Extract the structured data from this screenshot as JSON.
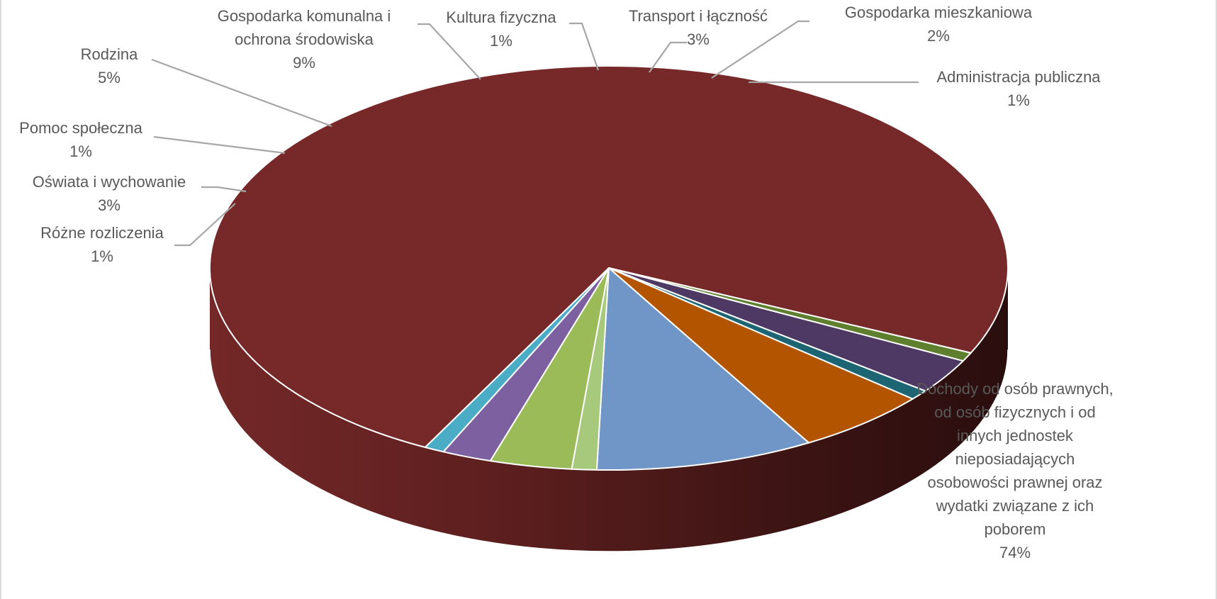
{
  "chart_data": {
    "type": "pie",
    "title": "",
    "style": "3d",
    "slices": [
      {
        "label": "Dochody od osób prawnych, od osób fizycznych i od innych jednostek nieposiadających osobowości prawnej oraz wydatki związane z ich poborem",
        "lines": [
          "Dochody od osób prawnych,",
          "od osób fizycznych i od",
          "innych jednostek",
          "nieposiadających",
          "osobowości prawnej oraz",
          "wydatki związane z ich",
          "poborem"
        ],
        "pct_label": "74%",
        "value": 74.0,
        "color": "#772828"
      },
      {
        "label": "Różne rozliczenia",
        "lines": [
          "Różne rozliczenia"
        ],
        "pct_label": "1%",
        "value": 0.7,
        "color": "#5e7f2e"
      },
      {
        "label": "Oświata i wychowanie",
        "lines": [
          "Oświata i wychowanie"
        ],
        "pct_label": "3%",
        "value": 2.8,
        "color": "#4e3964"
      },
      {
        "label": "Pomoc społeczna",
        "lines": [
          "Pomoc społeczna"
        ],
        "pct_label": "1%",
        "value": 0.8,
        "color": "#1e6574"
      },
      {
        "label": "Rodzina",
        "lines": [
          "Rodzina"
        ],
        "pct_label": "5%",
        "value": 5.4,
        "color": "#b25400"
      },
      {
        "label": "Gospodarka komunalna i ochrona środowiska",
        "lines": [
          "Gospodarka komunalna i",
          "ochrona środowiska"
        ],
        "pct_label": "9%",
        "value": 8.8,
        "color": "#7096c8"
      },
      {
        "label": "Kultura fizyczna",
        "lines": [
          "Kultura fizyczna"
        ],
        "pct_label": "1%",
        "value": 1.0,
        "color": "#a6c97b"
      },
      {
        "label": "Transport i łączność",
        "lines": [
          "Transport i łączność"
        ],
        "pct_label": "3%",
        "value": 3.3,
        "color": "#9bbb59"
      },
      {
        "label": "Gospodarka mieszkaniowa",
        "lines": [
          "Gospodarka mieszkaniowa"
        ],
        "pct_label": "2%",
        "value": 2.0,
        "color": "#7d60a0"
      },
      {
        "label": "Administracja publiczna",
        "lines": [
          "Administracja publiczna"
        ],
        "pct_label": "1%",
        "value": 0.8,
        "color": "#4bacc6"
      }
    ]
  }
}
